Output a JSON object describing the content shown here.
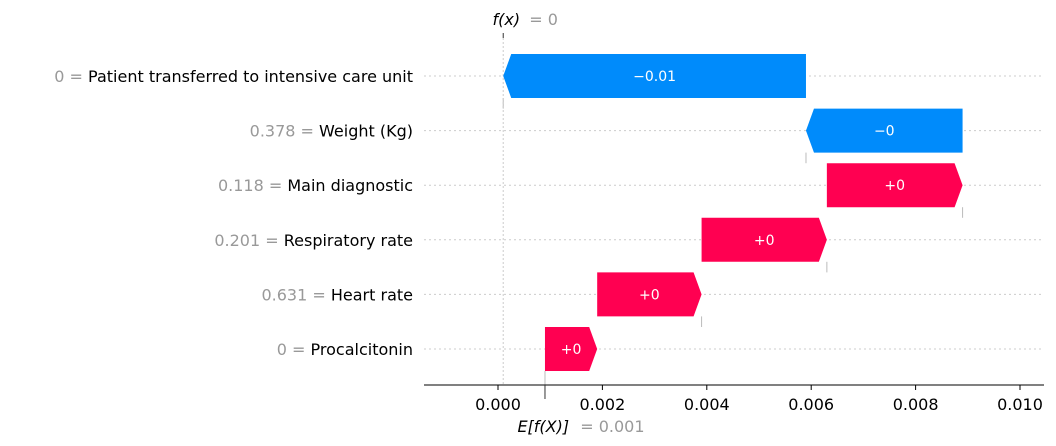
{
  "chart_data": {
    "type": "waterfall",
    "fx": {
      "label": "f(x)",
      "value_text": "= 0",
      "value": 0.0001
    },
    "expected": {
      "label": "E[f(X)]",
      "value_text": "= 0.001",
      "value": 0.0009
    },
    "x_ticks": [
      0.0,
      0.002,
      0.004,
      0.006,
      0.008,
      0.01
    ],
    "x_tick_labels": [
      "0.000",
      "0.002",
      "0.004",
      "0.006",
      "0.008",
      "0.010"
    ],
    "xlim": [
      -0.0015,
      0.0104
    ],
    "grid": false,
    "features": [
      {
        "value_text": "0",
        "name": "Patient transferred to intensive care unit",
        "start": 0.0059,
        "end": 0.0001,
        "label": "−0.01",
        "sign": "negative"
      },
      {
        "value_text": "0.378",
        "name": "Weight (Kg)",
        "start": 0.0089,
        "end": 0.0059,
        "label": "−0",
        "sign": "negative"
      },
      {
        "value_text": "0.118",
        "name": "Main diagnostic",
        "start": 0.0063,
        "end": 0.0089,
        "label": "+0",
        "sign": "positive"
      },
      {
        "value_text": "0.201",
        "name": "Respiratory rate",
        "start": 0.0039,
        "end": 0.0063,
        "label": "+0",
        "sign": "positive"
      },
      {
        "value_text": "0.631",
        "name": "Heart rate",
        "start": 0.0019,
        "end": 0.0039,
        "label": "+0",
        "sign": "positive"
      },
      {
        "value_text": "0",
        "name": "Procalcitonin",
        "start": 0.0009,
        "end": 0.0019,
        "label": "+0",
        "sign": "positive"
      }
    ],
    "colors": {
      "positive": "#ff0051",
      "negative": "#008bfb"
    }
  }
}
